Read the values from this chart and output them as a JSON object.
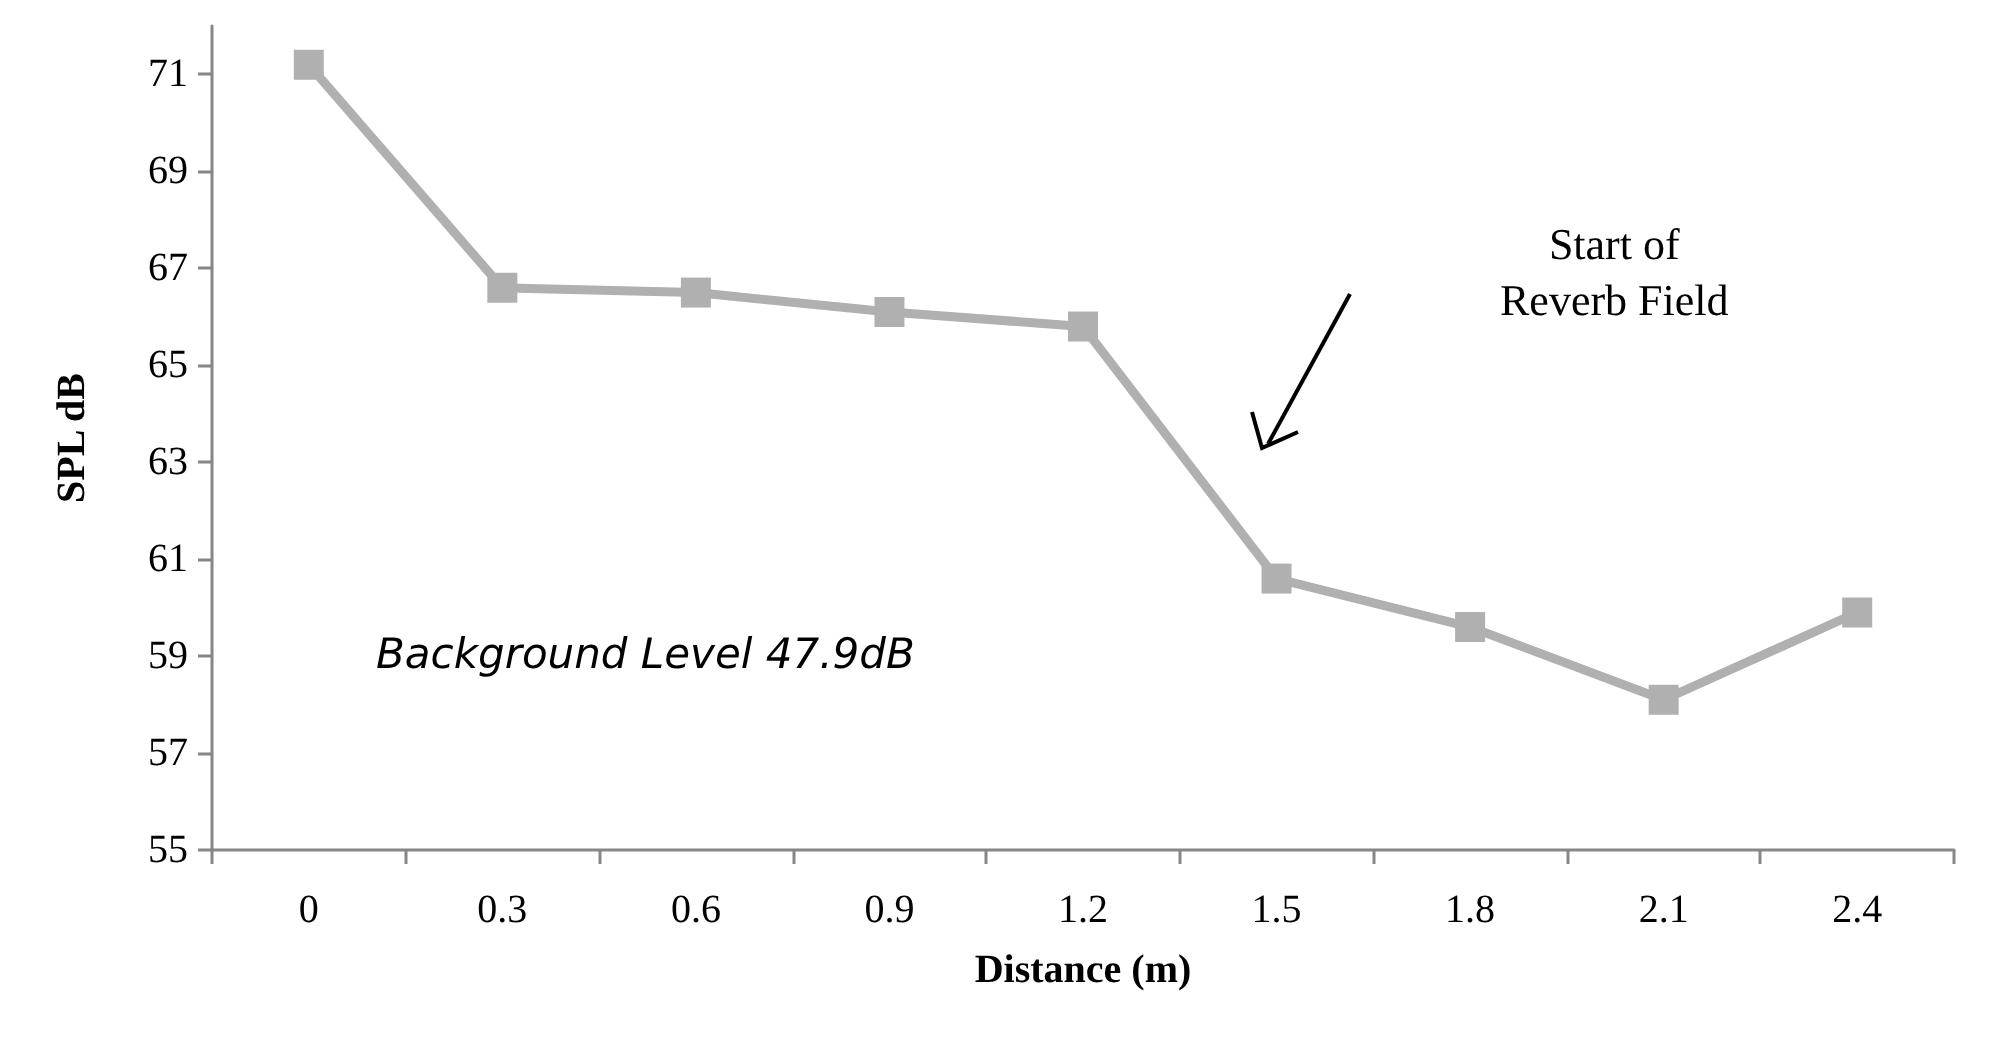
{
  "chart_data": {
    "type": "line",
    "xlabel": "Distance (m)",
    "ylabel": "SPL dB",
    "categories": [
      "0",
      "0.3",
      "0.6",
      "0.9",
      "1.2",
      "1.5",
      "1.8",
      "2.1",
      "2.4"
    ],
    "series": [
      {
        "color": "#b0b0b0",
        "values": [
          71.2,
          66.6,
          66.5,
          66.1,
          65.8,
          60.6,
          59.6,
          58.1,
          59.9
        ]
      }
    ],
    "ylim": [
      55,
      72
    ],
    "yticks": [
      55,
      57,
      59,
      61,
      63,
      65,
      67,
      69,
      71
    ],
    "grid": false,
    "marker": "square",
    "line_style": "solid",
    "annotations": [
      "Start of\nReverb Field",
      "Background Level 47.9dB"
    ]
  }
}
